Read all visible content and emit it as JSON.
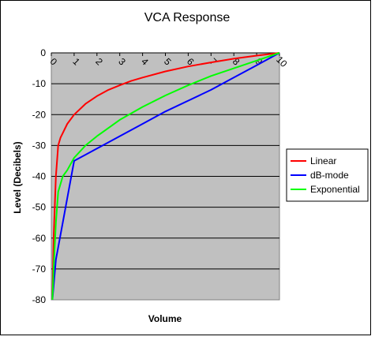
{
  "chart_data": {
    "type": "line",
    "title": "VCA Response",
    "xlabel": "Volume",
    "ylabel": "Level (Decibels)",
    "xlim": [
      0,
      10
    ],
    "ylim": [
      -80,
      0
    ],
    "x_ticks": [
      "0",
      "1",
      "2",
      "3",
      "4",
      "5",
      "6",
      "7",
      "8",
      "9",
      "10"
    ],
    "y_ticks": [
      "0",
      "-10",
      "-20",
      "-30",
      "-40",
      "-50",
      "-60",
      "-70",
      "-80"
    ],
    "x_axis_position": "top",
    "grid": "horizontal",
    "plot_background": "#c0c0c0",
    "legend_position": "right",
    "series": [
      {
        "name": "Linear",
        "color": "#ff0000",
        "x": [
          0.05,
          0.1,
          0.2,
          0.3,
          0.4,
          0.5,
          0.7,
          1.0,
          1.5,
          2.0,
          2.5,
          3.0,
          3.5,
          4.0,
          5.0,
          6.0,
          7.0,
          8.0,
          9.0,
          10.0
        ],
        "y": [
          -80,
          -60,
          -40,
          -30,
          -27.5,
          -26,
          -23,
          -20,
          -16.5,
          -14,
          -12,
          -10.5,
          -9.1,
          -8,
          -6,
          -4.4,
          -3.1,
          -1.9,
          -0.9,
          0
        ]
      },
      {
        "name": "dB-mode",
        "color": "#0000ff",
        "x": [
          0.05,
          0.2,
          0.5,
          1.0,
          1.5,
          2.0,
          3.0,
          4.0,
          5.0,
          6.0,
          7.0,
          8.0,
          9.0,
          10.0
        ],
        "y": [
          -80,
          -67,
          -55,
          -35,
          -33,
          -31,
          -27,
          -23,
          -19,
          -15.5,
          -12,
          -8,
          -4,
          0
        ]
      },
      {
        "name": "Exponential",
        "color": "#00ff00",
        "x": [
          0.05,
          0.1,
          0.2,
          0.3,
          0.5,
          0.7,
          1.0,
          1.5,
          2.0,
          3.0,
          4.0,
          5.0,
          6.0,
          7.0,
          8.0,
          9.0,
          10.0
        ],
        "y": [
          -80,
          -70,
          -55,
          -45,
          -40,
          -38,
          -34,
          -30,
          -27,
          -21.7,
          -17.5,
          -13.8,
          -10.5,
          -7.5,
          -5,
          -2.5,
          0
        ]
      }
    ]
  }
}
